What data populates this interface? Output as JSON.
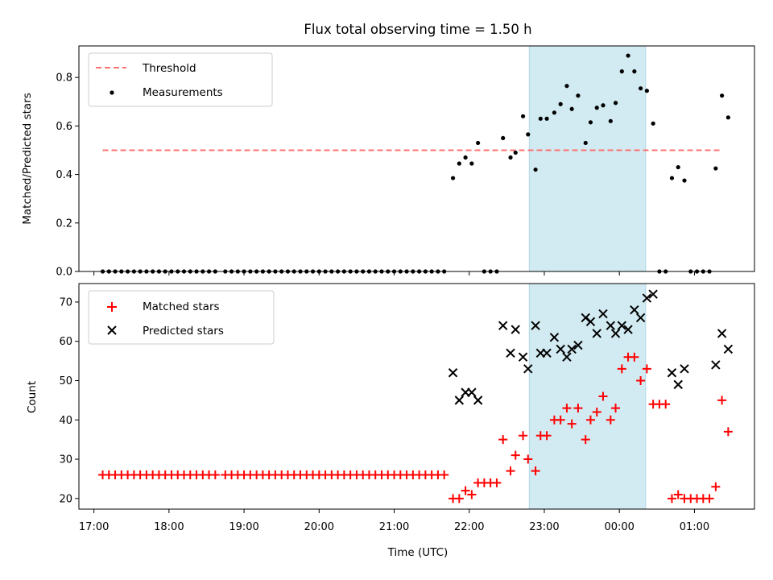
{
  "chart_data": [
    {
      "type": "scatter",
      "title": "Flux total observing time = 1.50 h",
      "ylabel": "Matched/Predicted stars",
      "xlabel": "",
      "xlim": [
        "16:48",
        "01:48"
      ],
      "ylim": [
        0,
        0.93
      ],
      "yticks": [
        "0.0",
        "0.2",
        "0.4",
        "0.6",
        "0.8"
      ],
      "threshold": {
        "name": "Threshold",
        "value": 0.5,
        "from": "17:07",
        "to": "01:21",
        "color": "#ff7070"
      },
      "shaded_span": {
        "from": "22:48",
        "to": "00:21",
        "color": "#add8e6"
      },
      "series": [
        {
          "name": "Measurements",
          "color": "#000000",
          "points": [
            [
              "17:07",
              0
            ],
            [
              "17:12",
              0
            ],
            [
              "17:17",
              0
            ],
            [
              "17:22",
              0
            ],
            [
              "17:27",
              0
            ],
            [
              "17:32",
              0
            ],
            [
              "17:37",
              0
            ],
            [
              "17:42",
              0
            ],
            [
              "17:47",
              0
            ],
            [
              "17:52",
              0
            ],
            [
              "17:57",
              0
            ],
            [
              "18:02",
              0
            ],
            [
              "18:07",
              0
            ],
            [
              "18:12",
              0
            ],
            [
              "18:17",
              0
            ],
            [
              "18:22",
              0
            ],
            [
              "18:27",
              0
            ],
            [
              "18:32",
              0
            ],
            [
              "18:37",
              0
            ],
            [
              "18:45",
              0
            ],
            [
              "18:50",
              0
            ],
            [
              "18:55",
              0
            ],
            [
              "19:00",
              0
            ],
            [
              "19:05",
              0
            ],
            [
              "19:10",
              0
            ],
            [
              "19:15",
              0
            ],
            [
              "19:20",
              0
            ],
            [
              "19:25",
              0
            ],
            [
              "19:30",
              0
            ],
            [
              "19:35",
              0
            ],
            [
              "19:40",
              0
            ],
            [
              "19:45",
              0
            ],
            [
              "19:50",
              0
            ],
            [
              "19:55",
              0
            ],
            [
              "20:00",
              0
            ],
            [
              "20:05",
              0
            ],
            [
              "20:10",
              0
            ],
            [
              "20:15",
              0
            ],
            [
              "20:20",
              0
            ],
            [
              "20:25",
              0
            ],
            [
              "20:30",
              0
            ],
            [
              "20:35",
              0
            ],
            [
              "20:40",
              0
            ],
            [
              "20:45",
              0
            ],
            [
              "20:50",
              0
            ],
            [
              "20:55",
              0
            ],
            [
              "21:00",
              0
            ],
            [
              "21:05",
              0
            ],
            [
              "21:10",
              0
            ],
            [
              "21:15",
              0
            ],
            [
              "21:20",
              0
            ],
            [
              "21:25",
              0
            ],
            [
              "21:30",
              0
            ],
            [
              "21:35",
              0
            ],
            [
              "21:40",
              0
            ],
            [
              "21:47",
              0.385
            ],
            [
              "21:52",
              0.445
            ],
            [
              "21:57",
              0.47
            ],
            [
              "22:02",
              0.445
            ],
            [
              "22:07",
              0.53
            ],
            [
              "22:12",
              0
            ],
            [
              "22:17",
              0
            ],
            [
              "22:22",
              0
            ],
            [
              "22:27",
              0.55
            ],
            [
              "22:33",
              0.47
            ],
            [
              "22:37",
              0.49
            ],
            [
              "22:43",
              0.64
            ],
            [
              "22:47",
              0.565
            ],
            [
              "22:53",
              0.42
            ],
            [
              "22:57",
              0.63
            ],
            [
              "23:02",
              0.63
            ],
            [
              "23:08",
              0.655
            ],
            [
              "23:13",
              0.69
            ],
            [
              "23:18",
              0.765
            ],
            [
              "23:22",
              0.67
            ],
            [
              "23:27",
              0.725
            ],
            [
              "23:33",
              0.53
            ],
            [
              "23:37",
              0.615
            ],
            [
              "23:42",
              0.675
            ],
            [
              "23:47",
              0.685
            ],
            [
              "23:53",
              0.62
            ],
            [
              "23:57",
              0.695
            ],
            [
              "00:02",
              0.825
            ],
            [
              "00:07",
              0.89
            ],
            [
              "00:12",
              0.825
            ],
            [
              "00:17",
              0.755
            ],
            [
              "00:22",
              0.745
            ],
            [
              "00:27",
              0.61
            ],
            [
              "00:32",
              0
            ],
            [
              "00:37",
              0
            ],
            [
              "00:42",
              0.385
            ],
            [
              "00:47",
              0.43
            ],
            [
              "00:52",
              0.375
            ],
            [
              "00:57",
              0
            ],
            [
              "01:02",
              0
            ],
            [
              "01:07",
              0
            ],
            [
              "01:12",
              0
            ],
            [
              "01:17",
              0.425
            ],
            [
              "01:22",
              0.725
            ],
            [
              "01:27",
              0.635
            ]
          ]
        }
      ]
    },
    {
      "type": "scatter",
      "title": "",
      "ylabel": "Count",
      "xlabel": "Time (UTC)",
      "xlim": [
        "16:48",
        "01:48"
      ],
      "ylim": [
        17.3,
        74.7
      ],
      "yticks": [
        "20",
        "30",
        "40",
        "50",
        "60",
        "70"
      ],
      "xticks": [
        "17:00",
        "18:00",
        "19:00",
        "20:00",
        "21:00",
        "22:00",
        "23:00",
        "00:00",
        "01:00"
      ],
      "shaded_span": {
        "from": "22:48",
        "to": "00:21",
        "color": "#add8e6"
      },
      "series": [
        {
          "name": "Matched stars",
          "marker": "plus",
          "color": "#ff0000",
          "points": [
            [
              "17:07",
              26
            ],
            [
              "17:12",
              26
            ],
            [
              "17:17",
              26
            ],
            [
              "17:22",
              26
            ],
            [
              "17:27",
              26
            ],
            [
              "17:32",
              26
            ],
            [
              "17:37",
              26
            ],
            [
              "17:42",
              26
            ],
            [
              "17:47",
              26
            ],
            [
              "17:52",
              26
            ],
            [
              "17:57",
              26
            ],
            [
              "18:02",
              26
            ],
            [
              "18:07",
              26
            ],
            [
              "18:12",
              26
            ],
            [
              "18:17",
              26
            ],
            [
              "18:22",
              26
            ],
            [
              "18:27",
              26
            ],
            [
              "18:32",
              26
            ],
            [
              "18:37",
              26
            ],
            [
              "18:45",
              26
            ],
            [
              "18:50",
              26
            ],
            [
              "18:55",
              26
            ],
            [
              "19:00",
              26
            ],
            [
              "19:05",
              26
            ],
            [
              "19:10",
              26
            ],
            [
              "19:15",
              26
            ],
            [
              "19:20",
              26
            ],
            [
              "19:25",
              26
            ],
            [
              "19:30",
              26
            ],
            [
              "19:35",
              26
            ],
            [
              "19:40",
              26
            ],
            [
              "19:45",
              26
            ],
            [
              "19:50",
              26
            ],
            [
              "19:55",
              26
            ],
            [
              "20:00",
              26
            ],
            [
              "20:05",
              26
            ],
            [
              "20:10",
              26
            ],
            [
              "20:15",
              26
            ],
            [
              "20:20",
              26
            ],
            [
              "20:25",
              26
            ],
            [
              "20:30",
              26
            ],
            [
              "20:35",
              26
            ],
            [
              "20:40",
              26
            ],
            [
              "20:45",
              26
            ],
            [
              "20:50",
              26
            ],
            [
              "20:55",
              26
            ],
            [
              "21:00",
              26
            ],
            [
              "21:05",
              26
            ],
            [
              "21:10",
              26
            ],
            [
              "21:15",
              26
            ],
            [
              "21:20",
              26
            ],
            [
              "21:25",
              26
            ],
            [
              "21:30",
              26
            ],
            [
              "21:35",
              26
            ],
            [
              "21:40",
              26
            ],
            [
              "21:47",
              20
            ],
            [
              "21:52",
              20
            ],
            [
              "21:57",
              22
            ],
            [
              "22:02",
              21
            ],
            [
              "22:07",
              24
            ],
            [
              "22:12",
              24
            ],
            [
              "22:17",
              24
            ],
            [
              "22:22",
              24
            ],
            [
              "22:27",
              35
            ],
            [
              "22:33",
              27
            ],
            [
              "22:37",
              31
            ],
            [
              "22:43",
              36
            ],
            [
              "22:47",
              30
            ],
            [
              "22:53",
              27
            ],
            [
              "22:57",
              36
            ],
            [
              "23:02",
              36
            ],
            [
              "23:08",
              40
            ],
            [
              "23:13",
              40
            ],
            [
              "23:18",
              43
            ],
            [
              "23:22",
              39
            ],
            [
              "23:27",
              43
            ],
            [
              "23:33",
              35
            ],
            [
              "23:37",
              40
            ],
            [
              "23:42",
              42
            ],
            [
              "23:47",
              46
            ],
            [
              "23:53",
              40
            ],
            [
              "23:57",
              43
            ],
            [
              "00:02",
              53
            ],
            [
              "00:07",
              56
            ],
            [
              "00:12",
              56
            ],
            [
              "00:17",
              50
            ],
            [
              "00:22",
              53
            ],
            [
              "00:27",
              44
            ],
            [
              "00:32",
              44
            ],
            [
              "00:37",
              44
            ],
            [
              "00:42",
              20
            ],
            [
              "00:47",
              21
            ],
            [
              "00:52",
              20
            ],
            [
              "00:57",
              20
            ],
            [
              "01:02",
              20
            ],
            [
              "01:07",
              20
            ],
            [
              "01:12",
              20
            ],
            [
              "01:17",
              23
            ],
            [
              "01:22",
              45
            ],
            [
              "01:27",
              37
            ]
          ]
        },
        {
          "name": "Predicted stars",
          "marker": "x",
          "color": "#000000",
          "points": [
            [
              "21:47",
              52
            ],
            [
              "21:52",
              45
            ],
            [
              "21:57",
              47
            ],
            [
              "22:02",
              47
            ],
            [
              "22:07",
              45
            ],
            [
              "22:27",
              64
            ],
            [
              "22:33",
              57
            ],
            [
              "22:37",
              63
            ],
            [
              "22:43",
              56
            ],
            [
              "22:47",
              53
            ],
            [
              "22:53",
              64
            ],
            [
              "22:57",
              57
            ],
            [
              "23:02",
              57
            ],
            [
              "23:08",
              61
            ],
            [
              "23:13",
              58
            ],
            [
              "23:18",
              56
            ],
            [
              "23:22",
              58
            ],
            [
              "23:27",
              59
            ],
            [
              "23:33",
              66
            ],
            [
              "23:37",
              65
            ],
            [
              "23:42",
              62
            ],
            [
              "23:47",
              67
            ],
            [
              "23:53",
              64
            ],
            [
              "23:57",
              62
            ],
            [
              "00:02",
              64
            ],
            [
              "00:07",
              63
            ],
            [
              "00:12",
              68
            ],
            [
              "00:17",
              66
            ],
            [
              "00:22",
              71
            ],
            [
              "00:27",
              72
            ],
            [
              "00:42",
              52
            ],
            [
              "00:47",
              49
            ],
            [
              "00:52",
              53
            ],
            [
              "01:17",
              54
            ],
            [
              "01:22",
              62
            ],
            [
              "01:27",
              58
            ]
          ]
        }
      ]
    }
  ]
}
